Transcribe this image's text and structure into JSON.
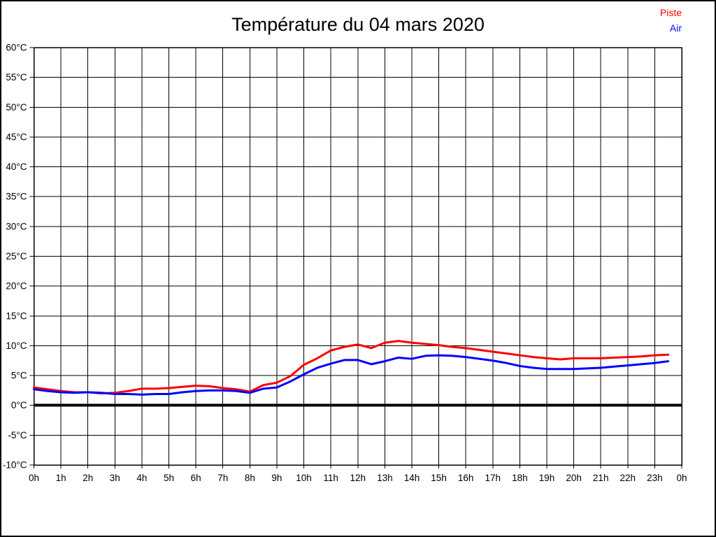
{
  "chart_data": {
    "type": "line",
    "title": "Température du 04 mars 2020",
    "grid": true,
    "background_color": "#ffffff",
    "frame_color": "#000000",
    "grid_color": "#000000",
    "ylim": [
      -10,
      60
    ],
    "y_step": 5,
    "y_tick_labels": [
      "60°C",
      "55°C",
      "50°C",
      "45°C",
      "40°C",
      "35°C",
      "30°C",
      "25°C",
      "20°C",
      "15°C",
      "10°C",
      "5°C",
      "0°C",
      "-5°C",
      "-10°C"
    ],
    "xlim_hours": [
      0,
      24
    ],
    "x_tick_labels": [
      "0h",
      "1h",
      "2h",
      "3h",
      "4h",
      "5h",
      "6h",
      "7h",
      "8h",
      "9h",
      "10h",
      "11h",
      "12h",
      "13h",
      "14h",
      "15h",
      "16h",
      "17h",
      "18h",
      "19h",
      "20h",
      "21h",
      "22h",
      "23h",
      "0h"
    ],
    "zero_line": {
      "value": 0,
      "color": "#000000",
      "width": 4
    },
    "legend": {
      "position": "top-right",
      "entries": [
        {
          "label": "Piste",
          "color": "#ff0000"
        },
        {
          "label": "Air",
          "color": "#0000ff"
        }
      ]
    },
    "x_hours": [
      0,
      0.5,
      1,
      1.5,
      2,
      2.5,
      3,
      3.5,
      4,
      4.5,
      5,
      5.5,
      6,
      6.5,
      7,
      7.5,
      8,
      8.5,
      9,
      9.5,
      10,
      10.5,
      11,
      11.5,
      12,
      12.5,
      13,
      13.5,
      14,
      14.5,
      15,
      15.5,
      16,
      16.5,
      17,
      17.5,
      18,
      18.5,
      19,
      19.5,
      20,
      20.5,
      21,
      21.5,
      22,
      22.5,
      23,
      23.5
    ],
    "series": [
      {
        "name": "Piste",
        "color": "#ff0000",
        "line_width": 3,
        "values": [
          3.0,
          2.7,
          2.4,
          2.2,
          2.2,
          2.0,
          2.1,
          2.4,
          2.8,
          2.8,
          2.9,
          3.1,
          3.3,
          3.2,
          2.9,
          2.7,
          2.3,
          3.4,
          3.8,
          4.9,
          6.8,
          7.9,
          9.2,
          9.8,
          10.2,
          9.6,
          10.5,
          10.8,
          10.5,
          10.3,
          10.1,
          9.8,
          9.6,
          9.3,
          9.0,
          8.7,
          8.4,
          8.1,
          7.9,
          7.7,
          7.9,
          7.9,
          7.9,
          8.0,
          8.1,
          8.2,
          8.4,
          8.5
        ]
      },
      {
        "name": "Air",
        "color": "#0000ff",
        "line_width": 3,
        "values": [
          2.7,
          2.4,
          2.2,
          2.1,
          2.2,
          2.1,
          1.9,
          1.9,
          1.8,
          1.9,
          1.9,
          2.2,
          2.4,
          2.5,
          2.5,
          2.4,
          2.1,
          2.8,
          3.0,
          4.0,
          5.2,
          6.3,
          7.0,
          7.6,
          7.6,
          6.9,
          7.4,
          8.0,
          7.8,
          8.3,
          8.4,
          8.3,
          8.1,
          7.8,
          7.5,
          7.1,
          6.6,
          6.3,
          6.1,
          6.1,
          6.1,
          6.2,
          6.3,
          6.5,
          6.7,
          6.9,
          7.1,
          7.4
        ]
      }
    ]
  }
}
